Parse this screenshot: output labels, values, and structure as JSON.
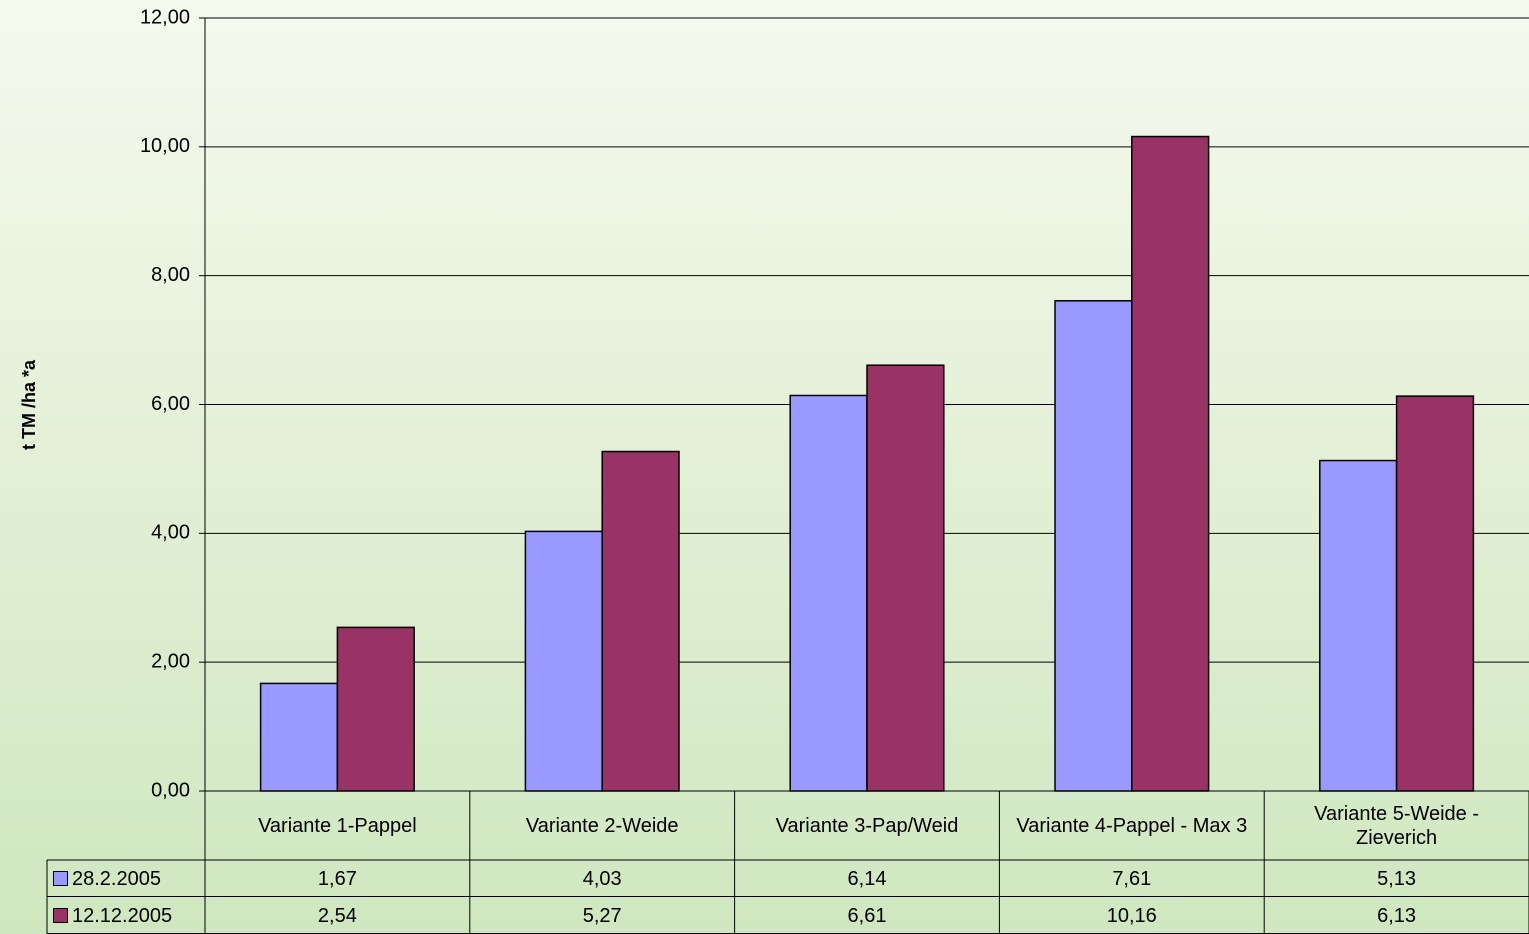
{
  "chart_data": {
    "type": "bar",
    "y_label": "t TM /ha *a",
    "categories": [
      "Variante 1-Pappel",
      "Variante 2-Weide",
      "Variante 3-Pap/Weid",
      "Variante 4-Pappel - Max  3",
      "Variante 5-Weide - Zieverich"
    ],
    "series": [
      {
        "name": "28.2.2005",
        "color": "#9999ff",
        "values": [
          1.67,
          4.03,
          6.14,
          7.61,
          5.13
        ],
        "value_labels": [
          "1,67",
          "4,03",
          "6,14",
          "7,61",
          "5,13"
        ]
      },
      {
        "name": "12.12.2005",
        "color": "#993366",
        "values": [
          2.54,
          5.27,
          6.61,
          10.16,
          6.13
        ],
        "value_labels": [
          "2,54",
          "5,27",
          "6,61",
          "10,16",
          "6,13"
        ]
      }
    ],
    "ylim": [
      0,
      12
    ],
    "yticks": [
      {
        "value": 0,
        "label": "0,00"
      },
      {
        "value": 2,
        "label": "2,00"
      },
      {
        "value": 4,
        "label": "4,00"
      },
      {
        "value": 6,
        "label": "6,00"
      },
      {
        "value": 8,
        "label": "8,00"
      },
      {
        "value": 10,
        "label": "10,00"
      },
      {
        "value": 12,
        "label": "12,00"
      }
    ],
    "grid": true,
    "data_table": true
  }
}
